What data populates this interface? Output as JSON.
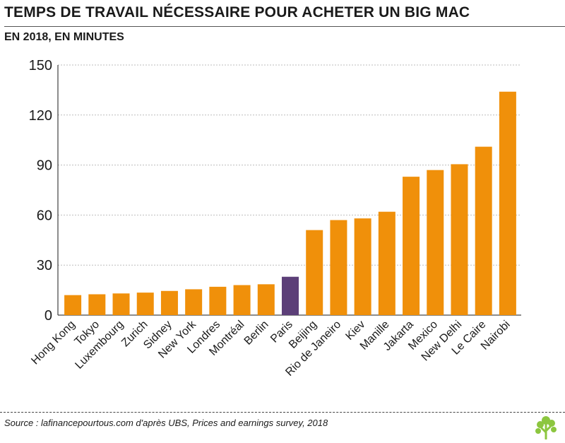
{
  "title": "TEMPS DE TRAVAIL NÉCESSAIRE POUR ACHETER UN BIG MAC",
  "subtitle": "EN 2018, EN MINUTES",
  "source": "Source : lafinancepourtous.com d'après UBS, Prices and earnings survey, 2018",
  "logo_icon": "tree-icon",
  "colors": {
    "bar": "#F0900A",
    "highlight": "#5C3F78",
    "logo": "#8CC63F"
  },
  "chart_data": {
    "type": "bar",
    "title": "",
    "xlabel": "",
    "ylabel": "",
    "ylim": [
      0,
      150
    ],
    "yticks": [
      0,
      30,
      60,
      90,
      120,
      150
    ],
    "grid": true,
    "categories": [
      "Hong Kong",
      "Tokyo",
      "Luxembourg",
      "Zurich",
      "Sidney",
      "New York",
      "Londres",
      "Montréal",
      "Berlin",
      "Paris",
      "Beijing",
      "Rio de Janeiro",
      "Kiev",
      "Manille",
      "Jakarta",
      "Mexico",
      "New Delhi",
      "Le Caire",
      "Nairobi"
    ],
    "values": [
      12,
      12.5,
      13,
      13.5,
      14.5,
      15.5,
      17,
      18,
      18.5,
      23,
      51,
      57,
      58,
      62,
      83,
      87,
      90.5,
      101,
      134
    ],
    "highlight": "Paris"
  }
}
